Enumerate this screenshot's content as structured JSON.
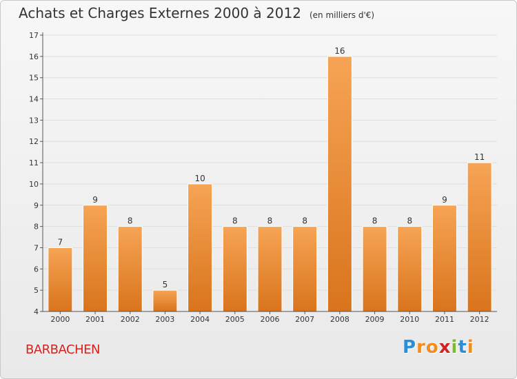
{
  "header": {
    "title": "Achats et Charges Externes 2000 à 2012",
    "unit": "(en milliers d'€)"
  },
  "footer": {
    "city": "BARBACHEN",
    "logo": [
      "P",
      "r",
      "o",
      "x",
      "i",
      "t",
      "i"
    ],
    "logo_colors": [
      "#2b8fd6",
      "#f28c1e",
      "#f28c1e",
      "#d2241f",
      "#7cbb2f",
      "#2b8fd6",
      "#f28c1e"
    ]
  },
  "colors": {
    "bar_top": "#f6a455",
    "bar_bottom": "#d9741c",
    "axis": "#555555",
    "grid": "#dedede",
    "city": "#d2241f"
  },
  "chart_data": {
    "type": "bar",
    "categories": [
      "2000",
      "2001",
      "2002",
      "2003",
      "2004",
      "2005",
      "2006",
      "2007",
      "2008",
      "2009",
      "2010",
      "2011",
      "2012"
    ],
    "values": [
      7,
      9,
      8,
      5,
      10,
      8,
      8,
      8,
      16,
      8,
      8,
      9,
      11
    ],
    "ylim": [
      4,
      17
    ],
    "yticks": [
      4,
      5,
      6,
      7,
      8,
      9,
      10,
      11,
      12,
      13,
      14,
      15,
      16,
      17
    ],
    "grid": true,
    "legend": "none"
  }
}
